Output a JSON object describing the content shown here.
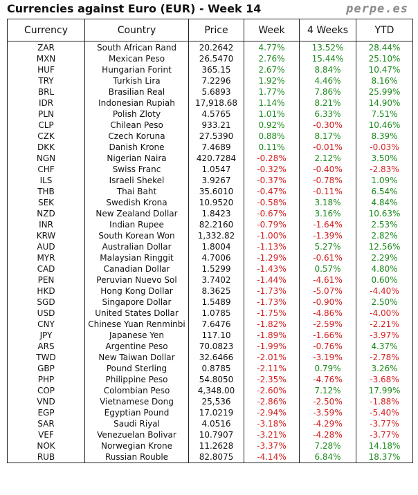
{
  "title": "Currencies against Euro (EUR) - Week 14",
  "brand": "perpe.es",
  "headers": {
    "currency": "Currency",
    "country": "Country",
    "price": "Price",
    "week": "Week",
    "four_weeks": "4 Weeks",
    "ytd": "YTD"
  },
  "colors": {
    "positive": "#1d8a1d",
    "negative": "#d42020"
  },
  "rows": [
    {
      "code": "ZAR",
      "country": "South African Rand",
      "price": "20.2642",
      "week": "4.77%",
      "w4": "13.52%",
      "ytd": "28.44%"
    },
    {
      "code": "MXN",
      "country": "Mexican Peso",
      "price": "26.5470",
      "week": "2.76%",
      "w4": "15.44%",
      "ytd": "25.10%"
    },
    {
      "code": "HUF",
      "country": "Hungarian Forint",
      "price": "365.15",
      "week": "2.67%",
      "w4": "8.84%",
      "ytd": "10.47%"
    },
    {
      "code": "TRY",
      "country": "Turkish Lira",
      "price": "7.2296",
      "week": "1.92%",
      "w4": "4.46%",
      "ytd": "8.16%"
    },
    {
      "code": "BRL",
      "country": "Brasilian Real",
      "price": "5.6893",
      "week": "1.77%",
      "w4": "7.86%",
      "ytd": "25.99%"
    },
    {
      "code": "IDR",
      "country": "Indonesian Rupiah",
      "price": "17,918.68",
      "week": "1.14%",
      "w4": "8.21%",
      "ytd": "14.90%"
    },
    {
      "code": "PLN",
      "country": "Polish Zloty",
      "price": "4.5765",
      "week": "1.01%",
      "w4": "6.33%",
      "ytd": "7.51%"
    },
    {
      "code": "CLP",
      "country": "Chilean Peso",
      "price": "933.21",
      "week": "0.92%",
      "w4": "-0.30%",
      "ytd": "10.46%"
    },
    {
      "code": "CZK",
      "country": "Czech Koruna",
      "price": "27.5390",
      "week": "0.88%",
      "w4": "8.17%",
      "ytd": "8.39%"
    },
    {
      "code": "DKK",
      "country": "Danish Krone",
      "price": "7.4689",
      "week": "0.11%",
      "w4": "-0.01%",
      "ytd": "-0.03%"
    },
    {
      "code": "NGN",
      "country": "Nigerian Naira",
      "price": "420.7284",
      "week": "-0.28%",
      "w4": "2.12%",
      "ytd": "3.50%"
    },
    {
      "code": "CHF",
      "country": "Swiss Franc",
      "price": "1.0547",
      "week": "-0.32%",
      "w4": "-0.40%",
      "ytd": "-2.83%"
    },
    {
      "code": "ILS",
      "country": "Israeli Shekel",
      "price": "3.9267",
      "week": "-0.37%",
      "w4": "-0.78%",
      "ytd": "1.09%"
    },
    {
      "code": "THB",
      "country": "Thai Baht",
      "price": "35.6010",
      "week": "-0.47%",
      "w4": "-0.11%",
      "ytd": "6.54%"
    },
    {
      "code": "SEK",
      "country": "Swedish Krona",
      "price": "10.9520",
      "week": "-0.58%",
      "w4": "3.18%",
      "ytd": "4.84%"
    },
    {
      "code": "NZD",
      "country": "New Zealand Dollar",
      "price": "1.8423",
      "week": "-0.67%",
      "w4": "3.16%",
      "ytd": "10.63%"
    },
    {
      "code": "INR",
      "country": "Indian Rupee",
      "price": "82.2160",
      "week": "-0.79%",
      "w4": "-1.64%",
      "ytd": "2.53%"
    },
    {
      "code": "KRW",
      "country": "South Korean Won",
      "price": "1,332.82",
      "week": "-1.00%",
      "w4": "-1.39%",
      "ytd": "2.82%"
    },
    {
      "code": "AUD",
      "country": "Australian Dollar",
      "price": "1.8004",
      "week": "-1.13%",
      "w4": "5.27%",
      "ytd": "12.56%"
    },
    {
      "code": "MYR",
      "country": "Malaysian Ringgit",
      "price": "4.7006",
      "week": "-1.29%",
      "w4": "-0.61%",
      "ytd": "2.29%"
    },
    {
      "code": "CAD",
      "country": "Canadian Dollar",
      "price": "1.5299",
      "week": "-1.43%",
      "w4": "0.57%",
      "ytd": "4.80%"
    },
    {
      "code": "PEN",
      "country": "Peruvian Nuevo Sol",
      "price": "3.7402",
      "week": "-1.44%",
      "w4": "-4.61%",
      "ytd": "0.60%"
    },
    {
      "code": "HKD",
      "country": "Hong Kong Dollar",
      "price": "8.3625",
      "week": "-1.73%",
      "w4": "-5.07%",
      "ytd": "-4.40%"
    },
    {
      "code": "SGD",
      "country": "Singapore Dollar",
      "price": "1.5489",
      "week": "-1.73%",
      "w4": "-0.90%",
      "ytd": "2.50%"
    },
    {
      "code": "USD",
      "country": "United States Dollar",
      "price": "1.0785",
      "week": "-1.75%",
      "w4": "-4.86%",
      "ytd": "-4.00%"
    },
    {
      "code": "CNY",
      "country": "Chinese Yuan Renminbi",
      "price": "7.6476",
      "week": "-1.82%",
      "w4": "-2.59%",
      "ytd": "-2.21%"
    },
    {
      "code": "JPY",
      "country": "Japanese Yen",
      "price": "117.10",
      "week": "-1.89%",
      "w4": "-1.66%",
      "ytd": "-3.97%"
    },
    {
      "code": "ARS",
      "country": "Argentine Peso",
      "price": "70.0823",
      "week": "-1.99%",
      "w4": "-0.76%",
      "ytd": "4.37%"
    },
    {
      "code": "TWD",
      "country": "New Taiwan Dollar",
      "price": "32.6466",
      "week": "-2.01%",
      "w4": "-3.19%",
      "ytd": "-2.78%"
    },
    {
      "code": "GBP",
      "country": "Pound Sterling",
      "price": "0.8785",
      "week": "-2.11%",
      "w4": "0.79%",
      "ytd": "3.26%"
    },
    {
      "code": "PHP",
      "country": "Philippine Peso",
      "price": "54.8050",
      "week": "-2.35%",
      "w4": "-4.76%",
      "ytd": "-3.68%"
    },
    {
      "code": "COP",
      "country": "Colombian Peso",
      "price": "4,348.00",
      "week": "-2.60%",
      "w4": "7.12%",
      "ytd": "17.99%"
    },
    {
      "code": "VND",
      "country": "Vietnamese Dong",
      "price": "25,536",
      "week": "-2.86%",
      "w4": "-2.50%",
      "ytd": "-1.88%"
    },
    {
      "code": "EGP",
      "country": "Egyptian Pound",
      "price": "17.0219",
      "week": "-2.94%",
      "w4": "-3.59%",
      "ytd": "-5.40%"
    },
    {
      "code": "SAR",
      "country": "Saudi Riyal",
      "price": "4.0516",
      "week": "-3.18%",
      "w4": "-4.29%",
      "ytd": "-3.77%"
    },
    {
      "code": "VEF",
      "country": "Venezuelan Bolivar",
      "price": "10.7907",
      "week": "-3.21%",
      "w4": "-4.28%",
      "ytd": "-3.77%"
    },
    {
      "code": "NOK",
      "country": "Norwegian Krone",
      "price": "11.2628",
      "week": "-3.37%",
      "w4": "7.28%",
      "ytd": "14.18%"
    },
    {
      "code": "RUB",
      "country": "Russian Rouble",
      "price": "82.8075",
      "week": "-4.14%",
      "w4": "6.84%",
      "ytd": "18.37%"
    }
  ]
}
